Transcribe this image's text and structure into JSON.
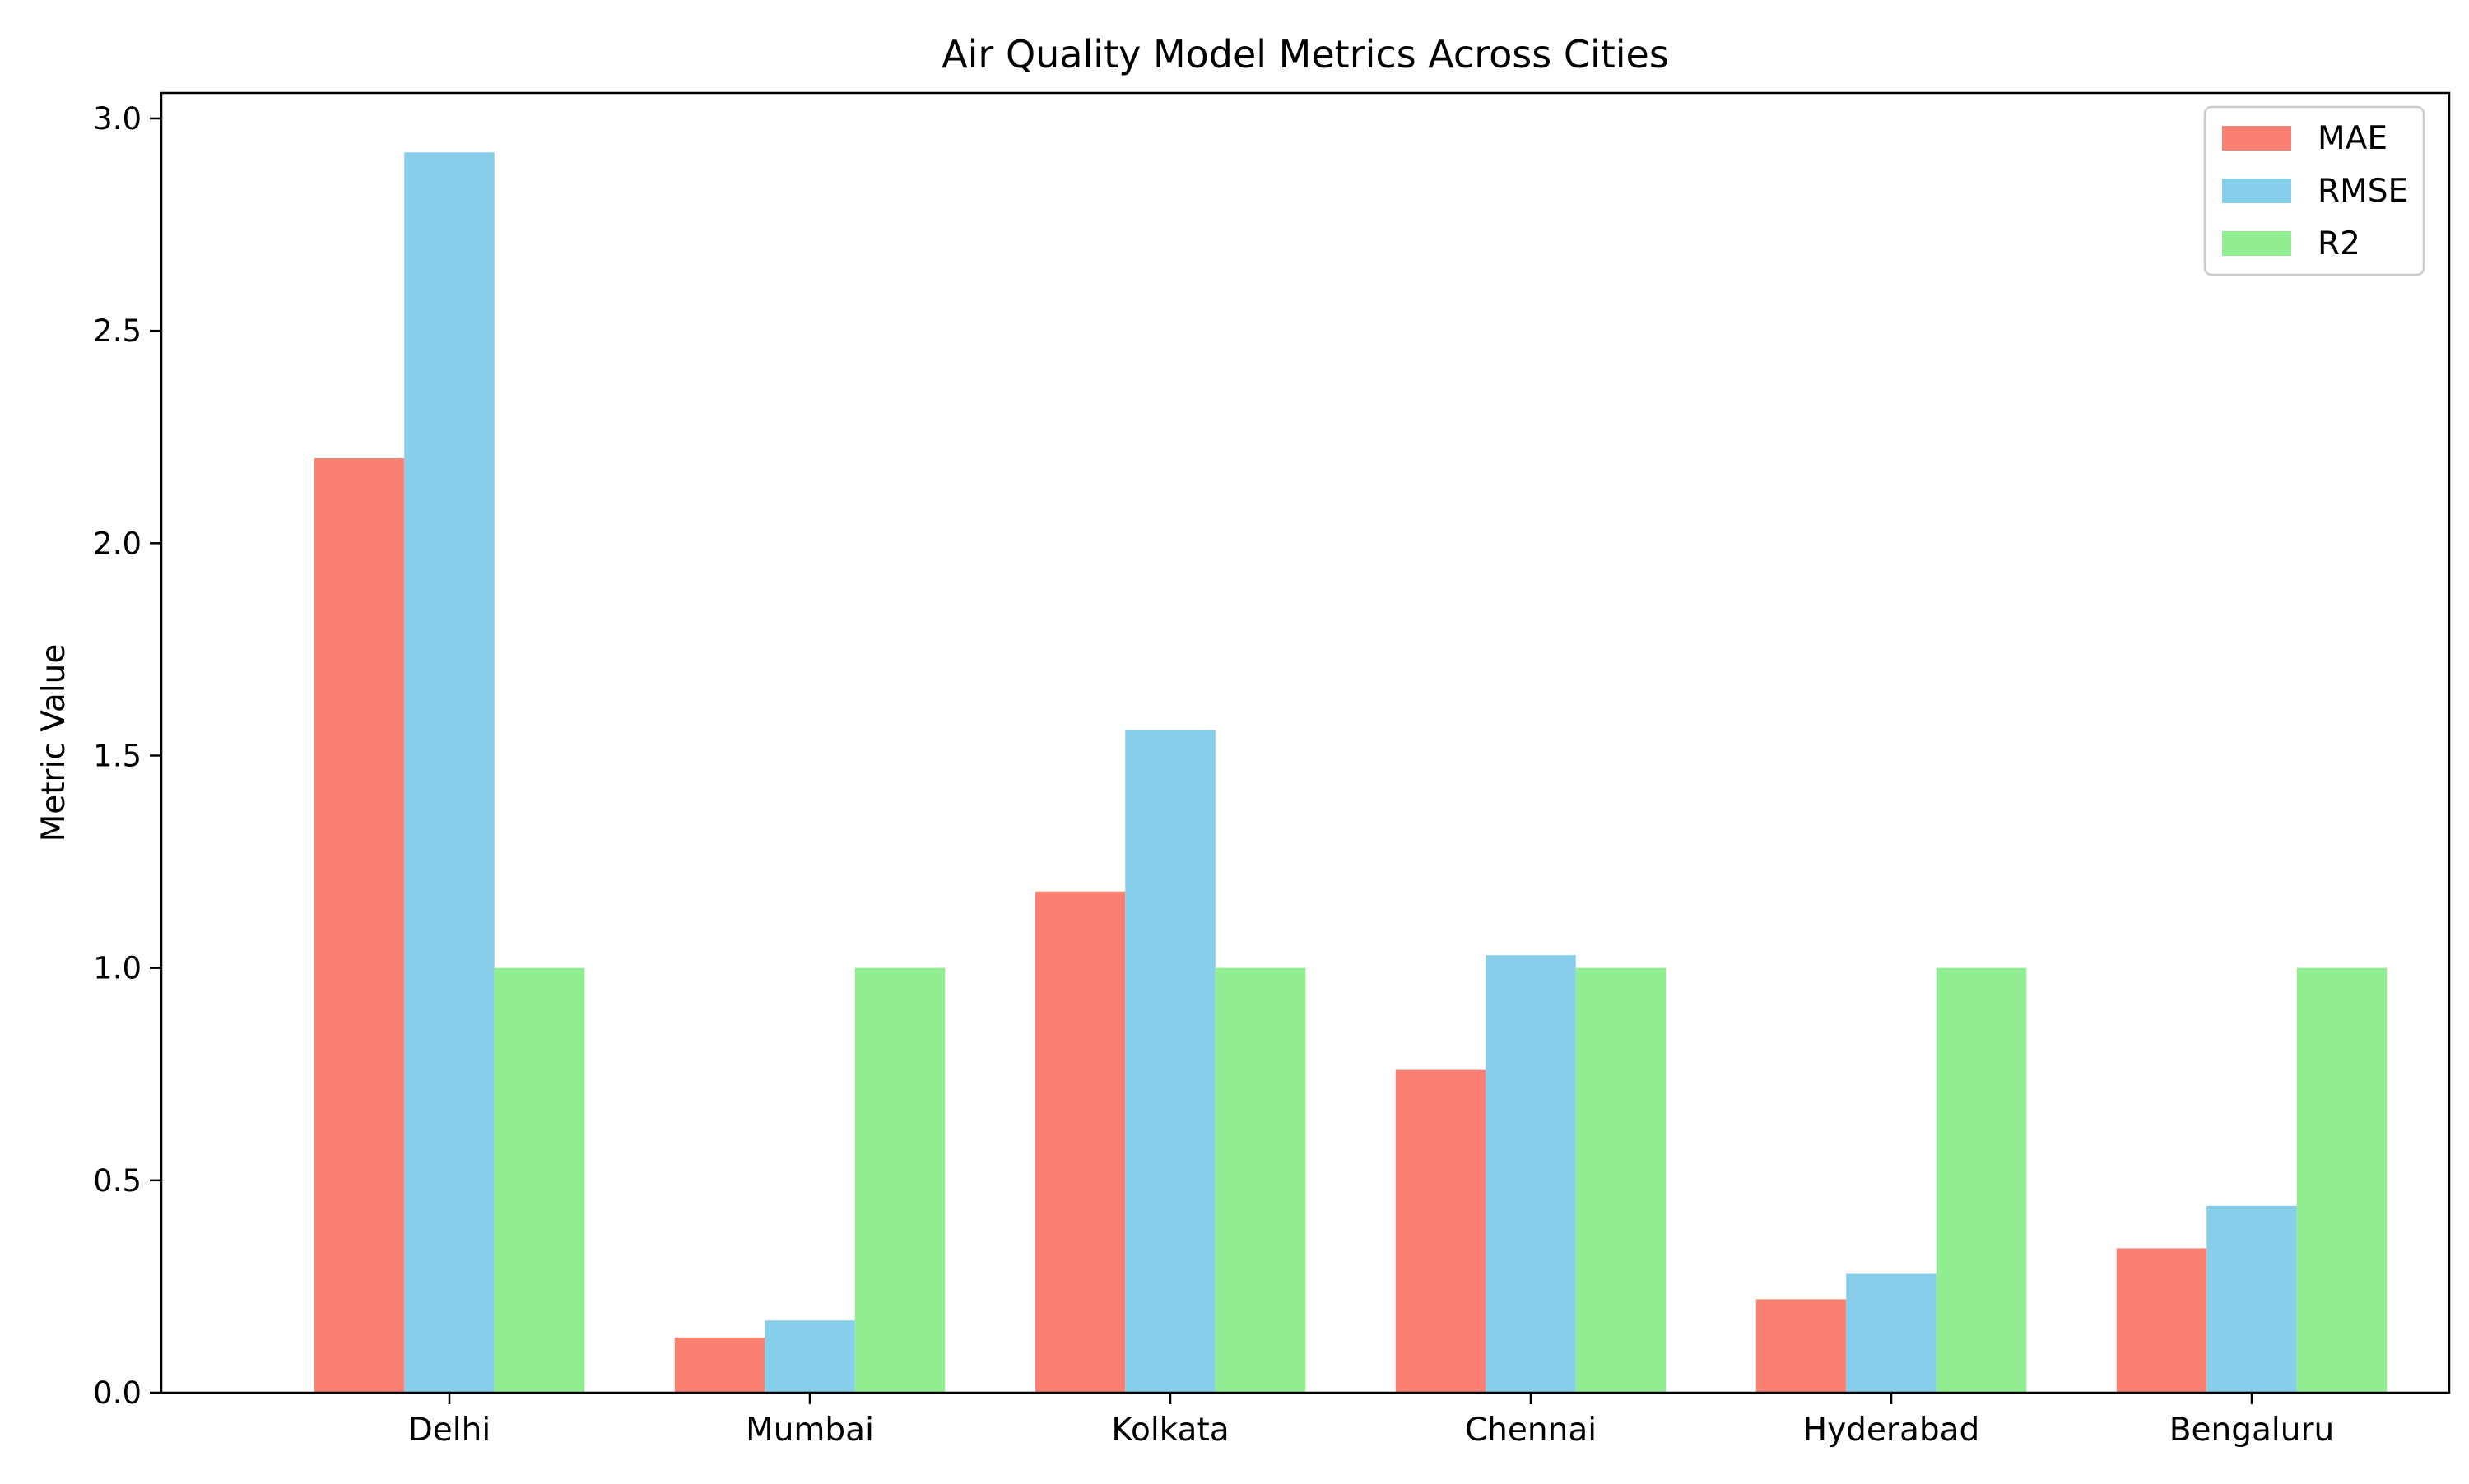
{
  "chart_data": {
    "type": "bar",
    "title": "Air Quality Model Metrics Across Cities",
    "xlabel": "",
    "ylabel": "Metric Value",
    "categories": [
      "Delhi",
      "Mumbai",
      "Kolkata",
      "Chennai",
      "Hyderabad",
      "Bengaluru"
    ],
    "series": [
      {
        "name": "MAE",
        "color": "#fa8072",
        "values": [
          2.2,
          0.13,
          1.18,
          0.76,
          0.22,
          0.34
        ]
      },
      {
        "name": "RMSE",
        "color": "#87ceeb",
        "values": [
          2.92,
          0.17,
          1.56,
          1.03,
          0.28,
          0.44
        ]
      },
      {
        "name": "R2",
        "color": "#90ee90",
        "values": [
          1.0,
          1.0,
          1.0,
          1.0,
          1.0,
          1.0
        ]
      }
    ],
    "ylim": [
      0,
      3.06
    ],
    "yticks": [
      "0.0",
      "0.5",
      "1.0",
      "1.5",
      "2.0",
      "2.5",
      "3.0"
    ],
    "legend_position": "top-right",
    "grid": false
  }
}
